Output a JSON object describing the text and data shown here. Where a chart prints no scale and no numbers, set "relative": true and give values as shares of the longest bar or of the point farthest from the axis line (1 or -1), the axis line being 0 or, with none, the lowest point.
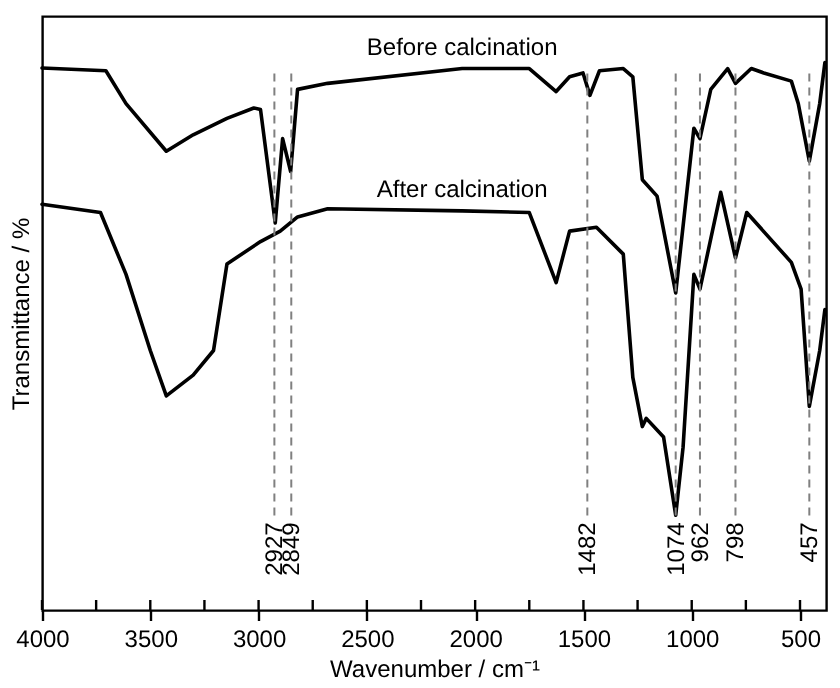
{
  "chart_data": {
    "type": "line",
    "relative": true,
    "xlabel": "Wavenumber / cm⁻¹",
    "ylabel": "Transmittance / %",
    "xlim": [
      4000,
      380
    ],
    "xticks": [
      4000,
      {
        "value": 3750,
        "label": null
      },
      3500,
      {
        "value": 3250,
        "label": null
      },
      3000,
      {
        "value": 2750,
        "label": null
      },
      2500,
      {
        "value": 2250,
        "label": null
      },
      2000,
      {
        "value": 1750,
        "label": null
      },
      1500,
      {
        "value": 1250,
        "label": null
      },
      1000,
      {
        "value": 750,
        "label": null
      },
      500
    ],
    "grid": false,
    "tick_labels": "x",
    "series": [
      {
        "name": "Before calcination",
        "color": "#000000",
        "x": [
          4000,
          3705,
          3612,
          3426,
          3302,
          3146,
          3022,
          2991,
          2923,
          2889,
          2852,
          2820,
          2681,
          2060,
          1750,
          1626,
          1564,
          1502,
          1470,
          1426,
          1316,
          1272,
          1228,
          1160,
          1074,
          990,
          962,
          912,
          834,
          798,
          725,
          667,
          540,
          508,
          457,
          409,
          385
        ],
        "values": [
          0.99,
          0.985,
          0.925,
          0.838,
          0.868,
          0.898,
          0.917,
          0.914,
          0.707,
          0.861,
          0.801,
          0.951,
          0.962,
          0.989,
          0.989,
          0.947,
          0.974,
          0.981,
          0.94,
          0.985,
          0.989,
          0.974,
          0.786,
          0.756,
          0.579,
          0.88,
          0.861,
          0.951,
          0.989,
          0.962,
          0.989,
          0.981,
          0.966,
          0.925,
          0.82,
          0.925,
          1
        ]
      },
      {
        "name": "After calcination",
        "color": "#000000",
        "x": [
          4000,
          3730,
          3612,
          3500,
          3426,
          3302,
          3208,
          3146,
          2991,
          2900,
          2820,
          2681,
          2060,
          1750,
          1626,
          1564,
          1440,
          1316,
          1272,
          1228,
          1210,
          1130,
          1074,
          1040,
          990,
          962,
          866,
          798,
          746,
          540,
          495,
          457,
          409,
          385
        ],
        "values": [
          0.741,
          0.726,
          0.613,
          0.474,
          0.391,
          0.429,
          0.474,
          0.632,
          0.673,
          0.692,
          0.718,
          0.733,
          0.729,
          0.726,
          0.598,
          0.692,
          0.699,
          0.65,
          0.425,
          0.335,
          0.35,
          0.316,
          0.173,
          0.297,
          0.613,
          0.586,
          0.763,
          0.643,
          0.726,
          0.635,
          0.586,
          0.372,
          0.474,
          0.549
        ]
      }
    ],
    "ref_lines": [
      {
        "axis": "x",
        "value": 2927,
        "label": "2927",
        "color": "#808080",
        "line_style": "dashed"
      },
      {
        "axis": "x",
        "value": 2849,
        "label": "2849",
        "color": "#808080",
        "line_style": "dashed"
      },
      {
        "axis": "x",
        "value": 1482,
        "label": "1482",
        "color": "#808080",
        "line_style": "dashed"
      },
      {
        "axis": "x",
        "value": 1074,
        "label": "1074",
        "color": "#808080",
        "line_style": "dashed"
      },
      {
        "axis": "x",
        "value": 962,
        "label": "962",
        "color": "#808080",
        "line_style": "dashed"
      },
      {
        "axis": "x",
        "value": 798,
        "label": "798",
        "color": "#808080",
        "line_style": "dashed"
      },
      {
        "axis": "x",
        "value": 457,
        "label": "457",
        "color": "#808080",
        "line_style": "dashed"
      }
    ]
  }
}
